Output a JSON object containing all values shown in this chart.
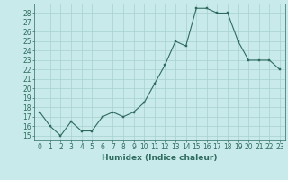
{
  "x": [
    0,
    1,
    2,
    3,
    4,
    5,
    6,
    7,
    8,
    9,
    10,
    11,
    12,
    13,
    14,
    15,
    16,
    17,
    18,
    19,
    20,
    21,
    22,
    23
  ],
  "y": [
    17.5,
    16.0,
    15.0,
    16.5,
    15.5,
    15.5,
    17.0,
    17.5,
    17.0,
    17.5,
    18.5,
    20.5,
    22.5,
    25.0,
    24.5,
    28.5,
    28.5,
    28.0,
    28.0,
    25.0,
    23.0,
    23.0,
    23.0,
    22.0
  ],
  "line_color": "#2e6b5e",
  "marker_color": "#2e6b5e",
  "bg_color": "#c8eaea",
  "grid_color": "#a8d0d0",
  "xlabel": "Humidex (Indice chaleur)",
  "ylim": [
    14.5,
    29.0
  ],
  "xlim": [
    -0.5,
    23.5
  ],
  "yticks": [
    15,
    16,
    17,
    18,
    19,
    20,
    21,
    22,
    23,
    24,
    25,
    26,
    27,
    28
  ],
  "xticks": [
    0,
    1,
    2,
    3,
    4,
    5,
    6,
    7,
    8,
    9,
    10,
    11,
    12,
    13,
    14,
    15,
    16,
    17,
    18,
    19,
    20,
    21,
    22,
    23
  ],
  "label_fontsize": 6.5,
  "tick_fontsize": 5.5
}
